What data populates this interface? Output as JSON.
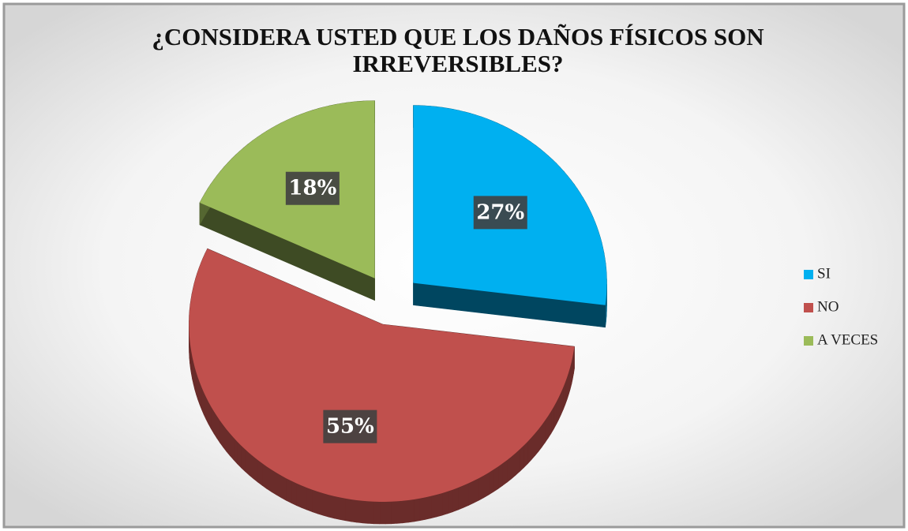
{
  "chart_data": {
    "type": "pie",
    "title": "¿CONSIDERA USTED QUE LOS DAÑOS FÍSICOS SON IRREVERSIBLES?",
    "categories": [
      "SI",
      "NO",
      "A VECES"
    ],
    "values": [
      27,
      55,
      18
    ],
    "value_labels": [
      "27%",
      "55%",
      "18%"
    ],
    "colors": [
      "#00b0f0",
      "#c0504d",
      "#9bbb59"
    ],
    "legend": "right"
  }
}
